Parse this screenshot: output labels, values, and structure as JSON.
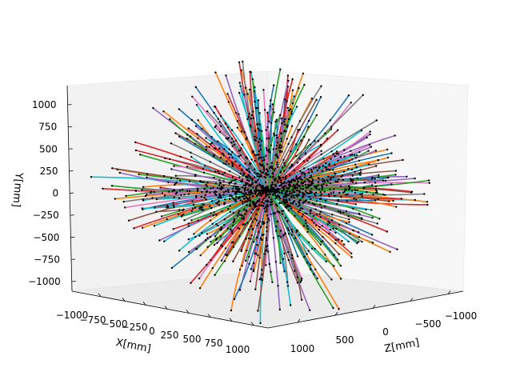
{
  "chart_data": {
    "type": "scatter",
    "subtype": "3d",
    "title": "",
    "description_of_marks": "Colored line segments radiating from the origin (track trajectories) with black point markers (hits)",
    "axes": {
      "x": {
        "label": "X[mm]",
        "ticks": [
          "−1000",
          "−750",
          "−500",
          "−250",
          "0",
          "250",
          "500",
          "750",
          "1000"
        ],
        "range": [
          -1000,
          1000
        ]
      },
      "y": {
        "label": "Y[mm]",
        "ticks": [
          "−1000",
          "−750",
          "−500",
          "−250",
          "0",
          "250",
          "500",
          "750",
          "1000"
        ],
        "range": [
          -1100,
          1100
        ]
      },
      "z": {
        "label": "Z[mm]",
        "ticks": [
          "1000",
          "500",
          "0",
          "−500",
          "−1000"
        ],
        "range": [
          -1100,
          1100
        ]
      }
    },
    "grid": false,
    "legend": "none",
    "series_colors": [
      "#1f77b4",
      "#ff7f0e",
      "#2ca02c",
      "#d62728",
      "#9467bd",
      "#8c564b",
      "#e377c2",
      "#7f7f7f",
      "#17becf"
    ],
    "hit_color": "#000000",
    "pane_colors": {
      "left": "#f2f2f2",
      "right": "#f7f7f7",
      "floor": "#ebebeb"
    }
  }
}
